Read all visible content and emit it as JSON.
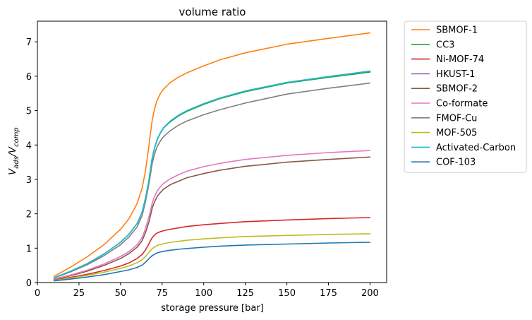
{
  "chart_data": {
    "type": "line",
    "title": "volume ratio",
    "xlabel": "storage pressure [bar]",
    "ylabel": "V_ads/V_comp",
    "xlim": [
      0,
      210
    ],
    "ylim": [
      0,
      7.6
    ],
    "xticks": [
      0,
      25,
      50,
      75,
      100,
      125,
      150,
      175,
      200
    ],
    "yticks": [
      0,
      1,
      2,
      3,
      4,
      5,
      6,
      7
    ],
    "grid": false,
    "legend_position": "outside-right",
    "x": [
      10,
      20,
      30,
      40,
      50,
      55,
      60,
      63,
      65,
      67,
      68,
      69,
      70,
      71,
      72,
      74,
      76,
      80,
      85,
      90,
      100,
      110,
      125,
      150,
      175,
      200
    ],
    "series": [
      {
        "name": "SBMOF-1",
        "color": "#ff7f0e",
        "values": [
          0.18,
          0.45,
          0.75,
          1.1,
          1.55,
          1.85,
          2.3,
          2.75,
          3.25,
          3.95,
          4.35,
          4.7,
          4.95,
          5.15,
          5.3,
          5.5,
          5.63,
          5.82,
          5.98,
          6.1,
          6.3,
          6.48,
          6.68,
          6.93,
          7.1,
          7.26
        ]
      },
      {
        "name": "CC3",
        "color": "#2ca02c",
        "values": [
          0.14,
          0.33,
          0.55,
          0.83,
          1.17,
          1.4,
          1.72,
          2.05,
          2.45,
          2.95,
          3.3,
          3.6,
          3.82,
          4.0,
          4.15,
          4.35,
          4.5,
          4.68,
          4.85,
          4.98,
          5.18,
          5.35,
          5.55,
          5.8,
          5.97,
          6.12
        ]
      },
      {
        "name": "Ni-MOF-74",
        "color": "#d62728",
        "values": [
          0.07,
          0.15,
          0.24,
          0.35,
          0.48,
          0.57,
          0.7,
          0.82,
          0.95,
          1.12,
          1.22,
          1.3,
          1.36,
          1.41,
          1.44,
          1.48,
          1.51,
          1.55,
          1.59,
          1.63,
          1.68,
          1.72,
          1.77,
          1.82,
          1.86,
          1.89
        ]
      },
      {
        "name": "HKUST-1",
        "color": "#9467bd",
        "values": [
          0.14,
          0.33,
          0.55,
          0.83,
          1.17,
          1.4,
          1.72,
          2.05,
          2.45,
          2.95,
          3.3,
          3.6,
          3.83,
          4.01,
          4.16,
          4.36,
          4.51,
          4.7,
          4.87,
          5.0,
          5.2,
          5.37,
          5.57,
          5.82,
          5.99,
          6.15
        ]
      },
      {
        "name": "SBMOF-2",
        "color": "#8c564b",
        "values": [
          0.09,
          0.2,
          0.33,
          0.5,
          0.7,
          0.84,
          1.03,
          1.22,
          1.45,
          1.75,
          1.95,
          2.15,
          2.3,
          2.4,
          2.5,
          2.62,
          2.72,
          2.85,
          2.95,
          3.05,
          3.17,
          3.27,
          3.38,
          3.5,
          3.58,
          3.65
        ]
      },
      {
        "name": "Co-formate",
        "color": "#e377c2",
        "values": [
          0.1,
          0.22,
          0.36,
          0.54,
          0.76,
          0.9,
          1.1,
          1.31,
          1.57,
          1.9,
          2.1,
          2.3,
          2.45,
          2.56,
          2.66,
          2.79,
          2.89,
          3.02,
          3.14,
          3.24,
          3.37,
          3.47,
          3.58,
          3.7,
          3.78,
          3.84
        ]
      },
      {
        "name": "FMOF-Cu",
        "color": "#7f7f7f",
        "values": [
          0.13,
          0.31,
          0.52,
          0.78,
          1.1,
          1.32,
          1.62,
          1.95,
          2.35,
          2.85,
          3.15,
          3.45,
          3.65,
          3.82,
          3.95,
          4.12,
          4.25,
          4.42,
          4.58,
          4.7,
          4.88,
          5.03,
          5.22,
          5.48,
          5.65,
          5.8
        ]
      },
      {
        "name": "MOF-505",
        "color": "#bcbd22",
        "values": [
          0.06,
          0.13,
          0.21,
          0.3,
          0.41,
          0.48,
          0.58,
          0.67,
          0.76,
          0.87,
          0.93,
          0.98,
          1.02,
          1.05,
          1.08,
          1.11,
          1.13,
          1.17,
          1.2,
          1.23,
          1.27,
          1.3,
          1.34,
          1.37,
          1.4,
          1.42
        ]
      },
      {
        "name": "Activated-Carbon",
        "color": "#17becf",
        "values": [
          0.14,
          0.33,
          0.55,
          0.83,
          1.17,
          1.4,
          1.72,
          2.05,
          2.45,
          2.95,
          3.3,
          3.6,
          3.83,
          4.01,
          4.16,
          4.36,
          4.51,
          4.7,
          4.87,
          5.0,
          5.2,
          5.37,
          5.57,
          5.82,
          5.99,
          6.15
        ]
      },
      {
        "name": "COF-103",
        "color": "#1f77b4",
        "values": [
          0.05,
          0.1,
          0.16,
          0.23,
          0.32,
          0.37,
          0.44,
          0.51,
          0.59,
          0.69,
          0.74,
          0.78,
          0.81,
          0.84,
          0.86,
          0.89,
          0.91,
          0.94,
          0.97,
          0.99,
          1.03,
          1.06,
          1.09,
          1.12,
          1.15,
          1.17
        ]
      }
    ]
  }
}
